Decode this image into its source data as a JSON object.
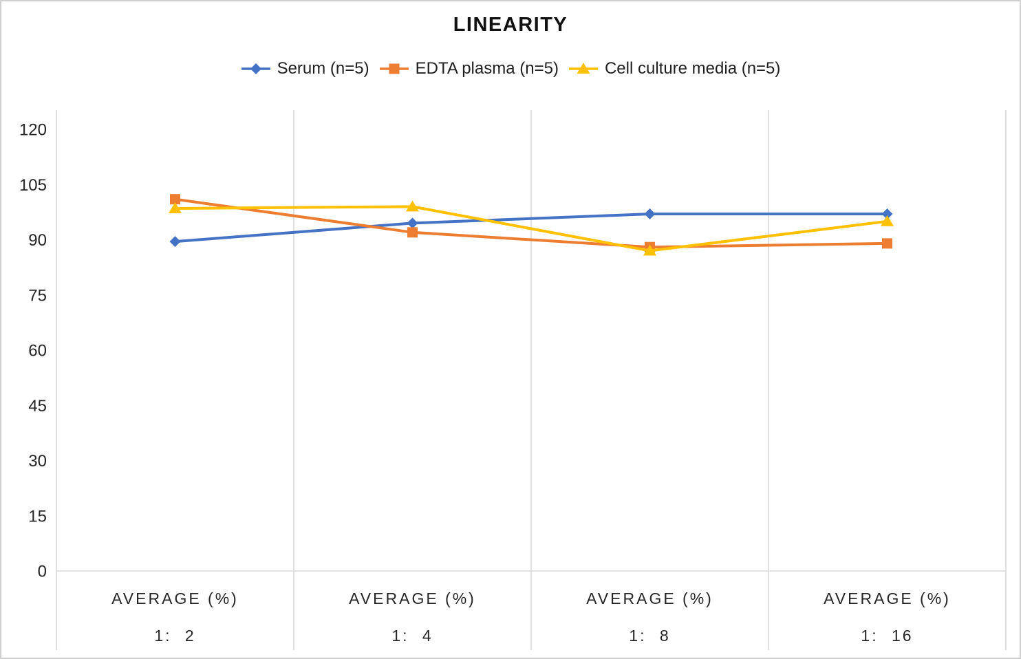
{
  "frame": {
    "background": "#ffffff",
    "border_color": "#cfcfcf"
  },
  "chart_data": {
    "type": "line",
    "title": "LINEARITY",
    "legend_position": "top",
    "grid": {
      "vertical": true,
      "horizontal": false,
      "color": "#d9d9d9"
    },
    "x_axis": {
      "column_headers": [
        "AVERAGE (%)",
        "AVERAGE (%)",
        "AVERAGE (%)",
        "AVERAGE (%)"
      ],
      "categories": [
        "1: 2",
        "1: 4",
        "1: 8",
        "1: 16"
      ]
    },
    "y_axis": {
      "min": 0,
      "max": 120,
      "step": 15,
      "ticks": [
        120,
        105,
        90,
        75,
        60,
        45,
        30,
        15,
        0
      ]
    },
    "series": [
      {
        "name": "Serum (n=5)",
        "color": "#4472C4",
        "marker": "diamond",
        "values": [
          89.5,
          94.5,
          97,
          97
        ]
      },
      {
        "name": "EDTA plasma (n=5)",
        "color": "#ED7D31",
        "marker": "square",
        "values": [
          101,
          92,
          88,
          89
        ]
      },
      {
        "name": "Cell culture media (n=5)",
        "color": "#FFC000",
        "marker": "triangle",
        "values": [
          98.5,
          99,
          87,
          95
        ]
      }
    ]
  }
}
